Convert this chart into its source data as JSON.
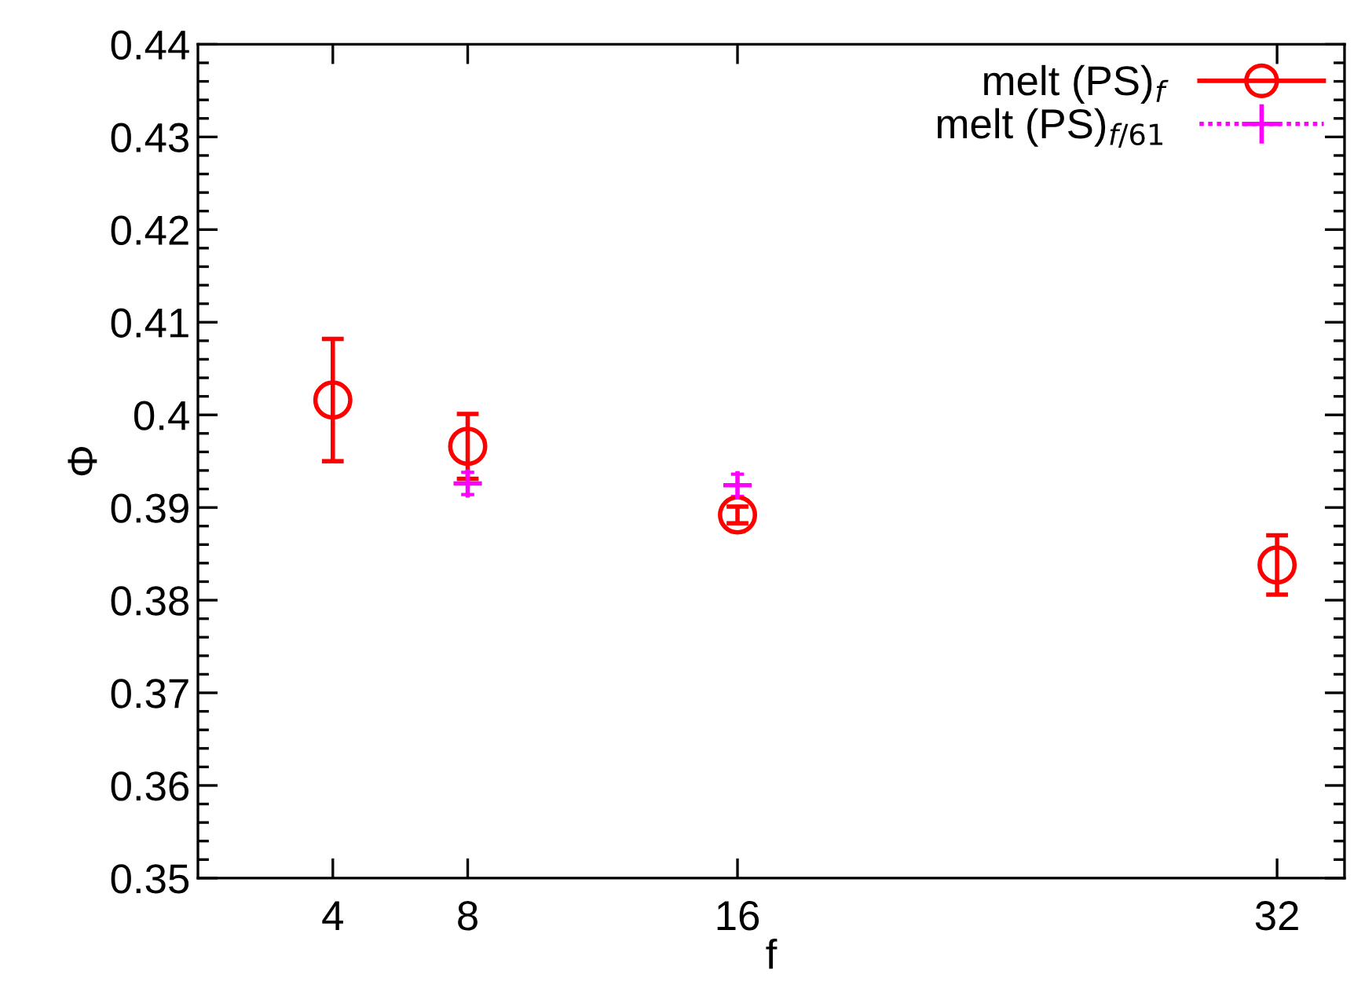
{
  "chart_data": {
    "type": "scatter",
    "xlabel": "f",
    "ylabel": "Φ",
    "series": [
      {
        "name": "melt (PS)$_{f}$",
        "color": "#ff0000",
        "marker": "circle",
        "x": [
          4,
          8,
          16,
          32
        ],
        "values": [
          0.4016,
          0.3966,
          0.3892,
          0.3838
        ],
        "errors": [
          0.0066,
          0.0035,
          0.0009,
          0.0032
        ]
      },
      {
        "name": "melt (PS)$_{f/61}$",
        "color": "#ff00ff",
        "marker": "cross",
        "x": [
          8,
          16
        ],
        "values": [
          0.3926,
          0.3924
        ],
        "errors": [
          0.0012,
          0.0012
        ]
      }
    ],
    "xlim": [
      0,
      34
    ],
    "xticks": [
      4,
      8,
      16,
      32
    ],
    "ylim": [
      0.35,
      0.44
    ],
    "yticks": [
      {
        "value": 0.35,
        "label": "0.35"
      },
      {
        "value": 0.36,
        "label": "0.36"
      },
      {
        "value": 0.37,
        "label": "0.37"
      },
      {
        "value": 0.38,
        "label": "0.38"
      },
      {
        "value": 0.39,
        "label": "0.39"
      },
      {
        "value": 0.4,
        "label": "0.4"
      },
      {
        "value": 0.41,
        "label": "0.41"
      },
      {
        "value": 0.42,
        "label": "0.42"
      },
      {
        "value": 0.43,
        "label": "0.43"
      },
      {
        "value": 0.44,
        "label": "0.44"
      }
    ],
    "grid": false,
    "legend": "top right"
  }
}
